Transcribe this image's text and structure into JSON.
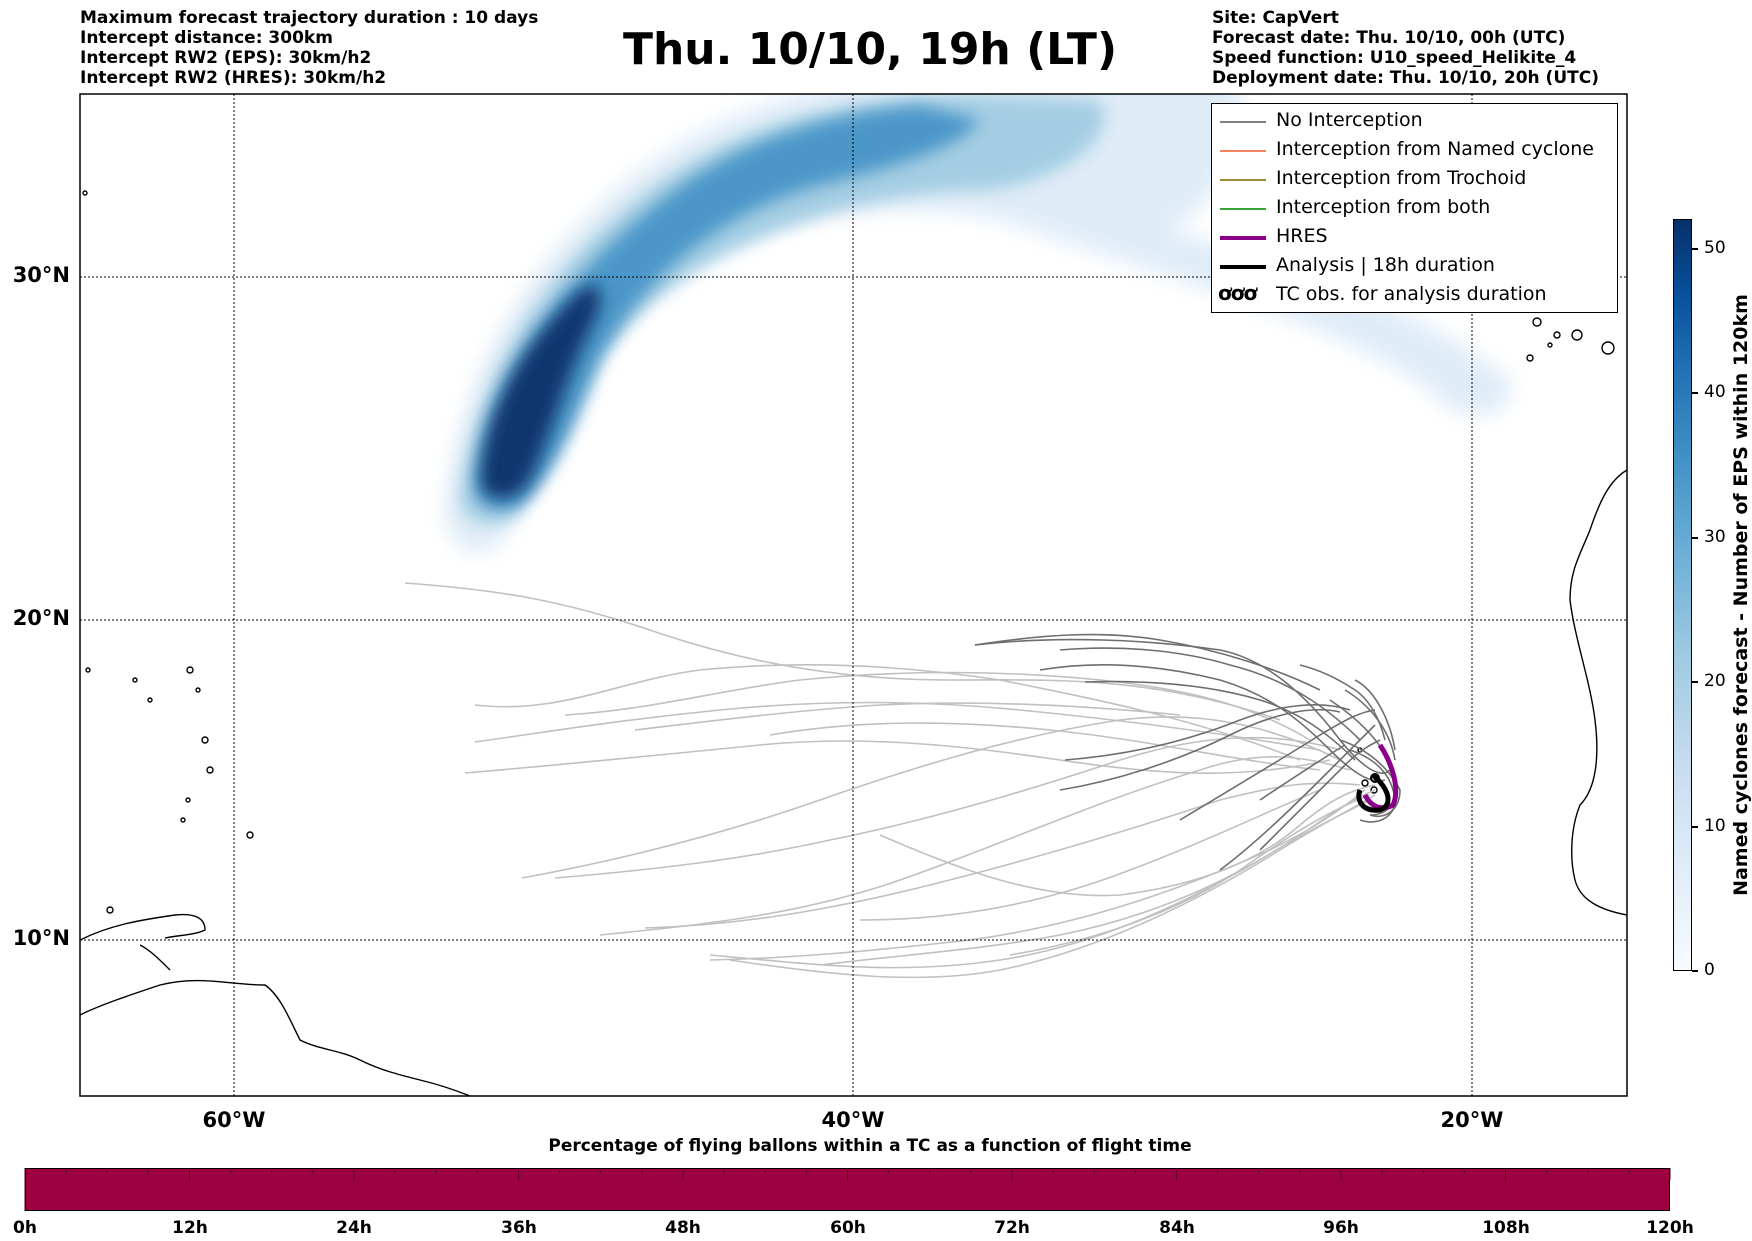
{
  "header_left": [
    "Maximum forecast trajectory duration : 10 days",
    "Intercept distance: 300km",
    "Intercept RW2 (EPS):  30km/h2",
    "Intercept RW2 (HRES): 30km/h2"
  ],
  "title": "Thu. 10/10, 19h (LT)",
  "header_right": [
    "Site: CapVert",
    "Forecast date: Thu. 10/10, 00h (UTC)",
    "Speed function: U10_speed_Helikite_4",
    "Deployment date: Thu. 10/10, 20h (UTC)"
  ],
  "map": {
    "lat_ticks": [
      "30°N",
      "20°N",
      "10°N"
    ],
    "lon_ticks": [
      "60°W",
      "40°W",
      "20°W"
    ]
  },
  "legend": [
    {
      "label": "No Interception",
      "color": "#808080"
    },
    {
      "label": "Interception from Named cyclone",
      "color": "#f4845f"
    },
    {
      "label": "Interception from Trochoid",
      "color": "#9c8c3a"
    },
    {
      "label": "Interception from both",
      "color": "#3aa33a"
    },
    {
      "label": "HRES",
      "color": "#8b008b"
    },
    {
      "label": "Analysis | 18h duration",
      "color": "#000000"
    },
    {
      "label": "TC obs. for analysis duration",
      "glyph": "ơơơ"
    }
  ],
  "colorbar": {
    "label": "Named cyclones forecast - Number of EPS within 120km",
    "ticks": [
      "0",
      "10",
      "20",
      "30",
      "40",
      "50"
    ]
  },
  "bottom_bar": {
    "title": "Percentage of flying ballons within a TC as a function of flight time",
    "ticks": [
      "0h",
      "12h",
      "24h",
      "36h",
      "48h",
      "60h",
      "72h",
      "84h",
      "96h",
      "108h",
      "120h"
    ],
    "color": "#9e0142"
  }
}
